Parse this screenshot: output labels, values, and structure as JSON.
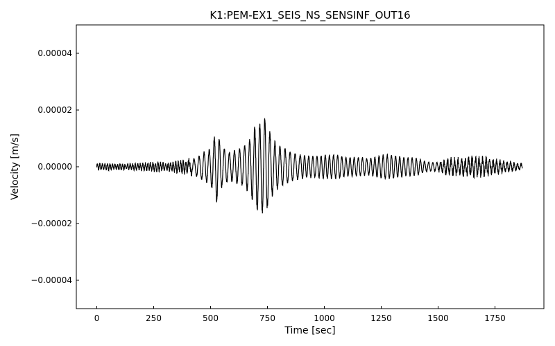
{
  "chart_data": {
    "type": "line",
    "title": "K1:PEM-EX1_SEIS_NS_SENSINF_OUT16",
    "xlabel": "Time [sec]",
    "ylabel": "Velocity [m/s]",
    "xlim": [
      -90,
      1965
    ],
    "ylim": [
      -5e-05,
      5e-05
    ],
    "x_ticks": [
      0,
      250,
      500,
      750,
      1000,
      1250,
      1500,
      1750
    ],
    "x_tick_labels": [
      "0",
      "250",
      "500",
      "750",
      "1000",
      "1250",
      "1500",
      "1750"
    ],
    "y_ticks": [
      -4e-05,
      -2e-05,
      0,
      2e-05,
      4e-05
    ],
    "y_tick_labels": [
      "−0.00004",
      "−0.00002",
      "0.00000",
      "0.00002",
      "0.00004"
    ],
    "grid": false,
    "line_color": "#000000",
    "series": [
      {
        "color": "#000000",
        "envelope_x": [
          0,
          100,
          200,
          260,
          300,
          400,
          440,
          470,
          500,
          525,
          550,
          580,
          610,
          640,
          670,
          700,
          720,
          740,
          760,
          780,
          800,
          830,
          860,
          900,
          950,
          1000,
          1050,
          1100,
          1150,
          1200,
          1250,
          1300,
          1350,
          1400,
          1450,
          1500,
          1550,
          1600,
          1650,
          1700,
          1750,
          1800,
          1870
        ],
        "envelope_y": [
          1.2e-06,
          1e-06,
          1.2e-06,
          1.8e-06,
          1.3e-06,
          2.5e-06,
          4e-06,
          6e-06,
          7.5e-06,
          1.5e-05,
          8.5e-06,
          6e-06,
          7e-06,
          8e-06,
          1.1e-05,
          1.8e-05,
          1.9e-05,
          2e-05,
          1.5e-05,
          1.1e-05,
          9e-06,
          7.5e-06,
          6e-06,
          5e-06,
          4.5e-06,
          5e-06,
          5e-06,
          4e-06,
          4e-06,
          3.5e-06,
          5e-06,
          5e-06,
          4e-06,
          3.8e-06,
          2e-06,
          1.8e-06,
          3e-06,
          3e-06,
          3.5e-06,
          3.5e-06,
          2.5e-06,
          1.8e-06,
          1.2e-06
        ]
      }
    ]
  }
}
